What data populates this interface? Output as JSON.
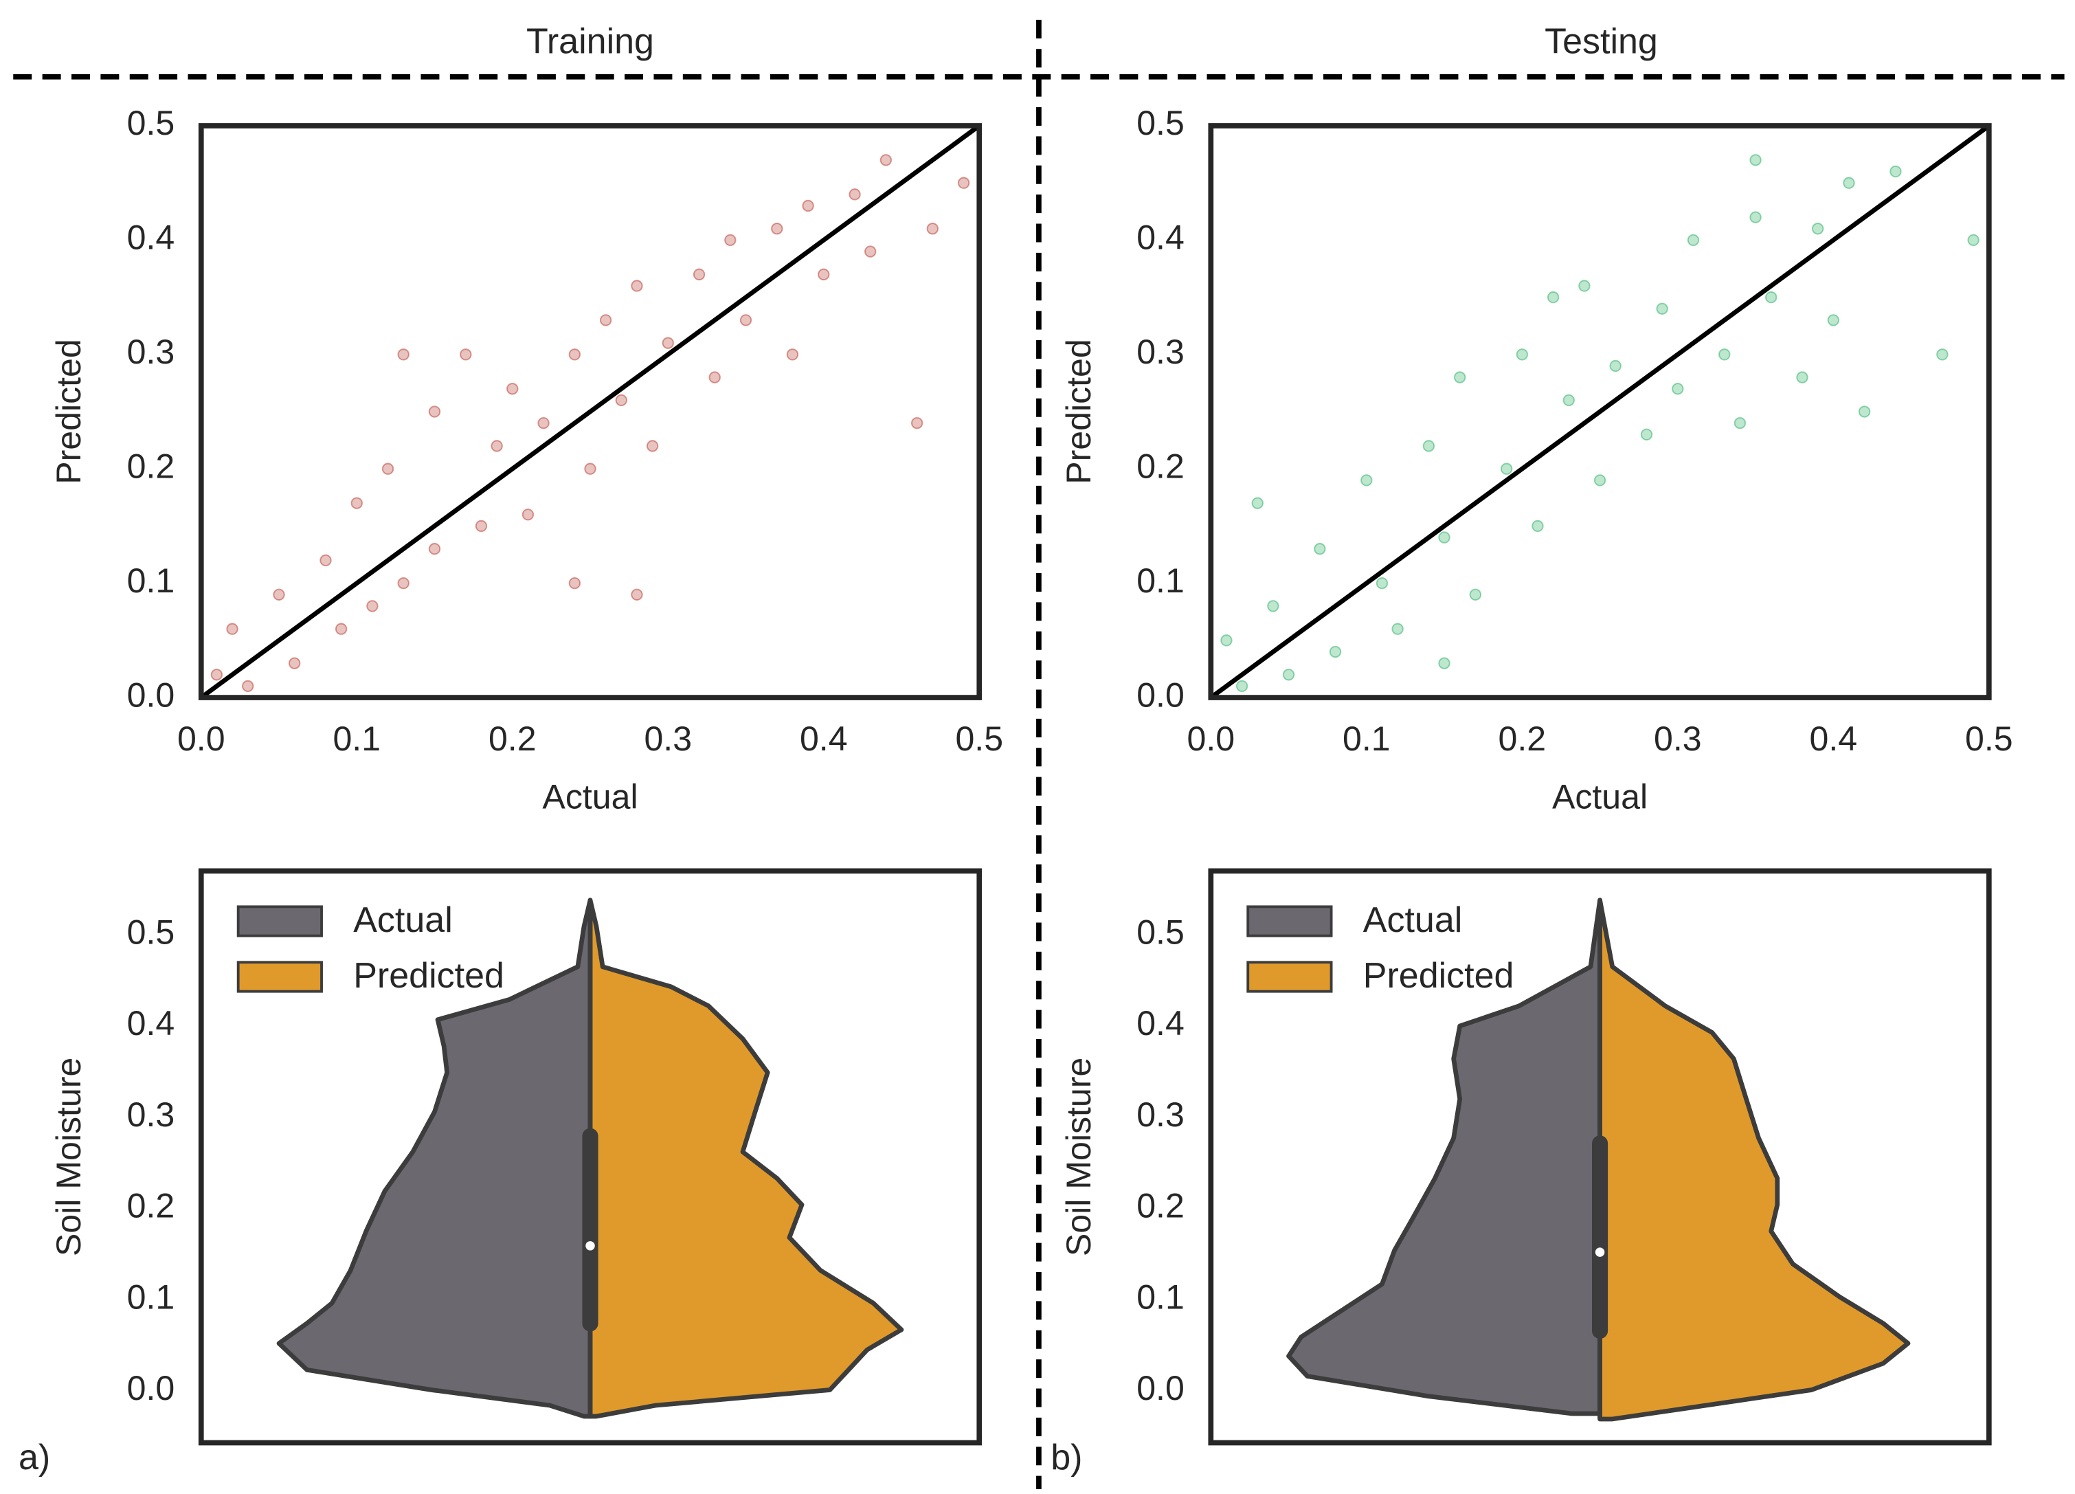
{
  "headers": [
    "Training",
    "Testing"
  ],
  "panel_labels": [
    "a)",
    "b)"
  ],
  "chart_data": [
    {
      "type": "scatter",
      "xlabel": "Actual",
      "ylabel": "Predicted",
      "color": "#b5382b",
      "xlim": [
        0,
        0.5
      ],
      "ylim": [
        0,
        0.5
      ],
      "xticks": [
        {
          "value": 0,
          "label": "0.0"
        },
        0.1,
        0.2,
        0.3,
        0.4,
        0.5
      ],
      "yticks": [
        {
          "value": 0,
          "label": "0.0"
        },
        0.1,
        0.2,
        0.3,
        0.4,
        0.5
      ],
      "x": [
        0.01,
        0.02,
        0.03,
        0.05,
        0.06,
        0.08,
        0.09,
        0.1,
        0.11,
        0.12,
        0.13,
        0.15,
        0.15,
        0.17,
        0.18,
        0.19,
        0.2,
        0.21,
        0.22,
        0.24,
        0.25,
        0.26,
        0.27,
        0.28,
        0.29,
        0.3,
        0.32,
        0.33,
        0.34,
        0.35,
        0.37,
        0.38,
        0.39,
        0.4,
        0.42,
        0.43,
        0.44,
        0.47,
        0.49,
        0.24,
        0.13,
        0.28,
        0.46
      ],
      "y": [
        0.02,
        0.06,
        0.01,
        0.09,
        0.03,
        0.12,
        0.06,
        0.17,
        0.08,
        0.2,
        0.1,
        0.25,
        0.13,
        0.3,
        0.15,
        0.22,
        0.27,
        0.16,
        0.24,
        0.3,
        0.2,
        0.33,
        0.26,
        0.36,
        0.22,
        0.31,
        0.37,
        0.28,
        0.4,
        0.33,
        0.41,
        0.3,
        0.43,
        0.37,
        0.44,
        0.39,
        0.47,
        0.41,
        0.45,
        0.1,
        0.3,
        0.09,
        0.24
      ],
      "reference_line": {
        "x": [
          0,
          0.5
        ],
        "y": [
          0,
          0.5
        ],
        "color": "#000000"
      }
    },
    {
      "type": "scatter",
      "xlabel": "Actual",
      "ylabel": "Predicted",
      "color": "#27ae60",
      "xlim": [
        0,
        0.5
      ],
      "ylim": [
        0,
        0.5
      ],
      "xticks": [
        {
          "value": 0,
          "label": "0.0"
        },
        0.1,
        0.2,
        0.3,
        0.4,
        0.5
      ],
      "yticks": [
        {
          "value": 0,
          "label": "0.0"
        },
        0.1,
        0.2,
        0.3,
        0.4,
        0.5
      ],
      "x": [
        0.01,
        0.02,
        0.03,
        0.04,
        0.05,
        0.07,
        0.08,
        0.1,
        0.11,
        0.12,
        0.14,
        0.15,
        0.16,
        0.17,
        0.19,
        0.2,
        0.21,
        0.23,
        0.24,
        0.25,
        0.26,
        0.28,
        0.29,
        0.3,
        0.31,
        0.33,
        0.34,
        0.35,
        0.36,
        0.38,
        0.39,
        0.4,
        0.41,
        0.42,
        0.44,
        0.47,
        0.49,
        0.35,
        0.22,
        0.15
      ],
      "y": [
        0.05,
        0.01,
        0.17,
        0.08,
        0.02,
        0.13,
        0.04,
        0.19,
        0.1,
        0.06,
        0.22,
        0.14,
        0.28,
        0.09,
        0.2,
        0.3,
        0.15,
        0.26,
        0.36,
        0.19,
        0.29,
        0.23,
        0.34,
        0.27,
        0.4,
        0.3,
        0.24,
        0.42,
        0.35,
        0.28,
        0.41,
        0.33,
        0.45,
        0.25,
        0.46,
        0.3,
        0.4,
        0.47,
        0.35,
        0.03
      ],
      "reference_line": {
        "x": [
          0,
          0.5
        ],
        "y": [
          0,
          0.5
        ],
        "color": "#000000"
      }
    },
    {
      "type": "violin",
      "ylabel": "Soil Moisture",
      "ylim": [
        -0.057,
        0.57
      ],
      "yticks": [
        {
          "value": 0,
          "label": "0.0"
        },
        0.1,
        0.2,
        0.3,
        0.4,
        0.5
      ],
      "legend": "upper left",
      "series": [
        {
          "name": "Actual",
          "color": "#6b6870",
          "y": [
            0.538,
            0.509,
            0.465,
            0.429,
            0.407,
            0.378,
            0.349,
            0.306,
            0.262,
            0.219,
            0.175,
            0.132,
            0.096,
            0.074,
            0.052,
            0.023,
            0.001,
            -0.016,
            -0.028
          ],
          "density": [
            0,
            0.02,
            0.04,
            0.26,
            0.49,
            0.47,
            0.46,
            0.5,
            0.57,
            0.66,
            0.72,
            0.77,
            0.83,
            0.91,
            1.0,
            0.91,
            0.51,
            0.13,
            0.02
          ]
        },
        {
          "name": "Predicted",
          "color": "#e09a2b",
          "y": [
            0.538,
            0.509,
            0.465,
            0.443,
            0.422,
            0.386,
            0.349,
            0.306,
            0.262,
            0.233,
            0.204,
            0.168,
            0.132,
            0.096,
            0.067,
            0.045,
            0.023,
            0.001,
            -0.016,
            -0.028
          ],
          "density": [
            0,
            0.02,
            0.04,
            0.26,
            0.38,
            0.49,
            0.57,
            0.53,
            0.49,
            0.6,
            0.68,
            0.64,
            0.74,
            0.91,
            1.0,
            0.89,
            0.83,
            0.77,
            0.21,
            0.02
          ]
        }
      ],
      "box": {
        "q1": 0.065,
        "q3": 0.288,
        "median": 0.159,
        "whisker": [
          -0.028,
          0.538
        ]
      }
    },
    {
      "type": "violin",
      "ylabel": "Soil Moisture",
      "ylim": [
        -0.057,
        0.57
      ],
      "yticks": [
        {
          "value": 0,
          "label": "0.0"
        },
        0.1,
        0.2,
        0.3,
        0.4,
        0.5
      ],
      "legend": "upper left",
      "series": [
        {
          "name": "Actual",
          "color": "#6b6870",
          "y": [
            0.538,
            0.465,
            0.422,
            0.4,
            0.364,
            0.32,
            0.277,
            0.233,
            0.19,
            0.154,
            0.117,
            0.088,
            0.059,
            0.038,
            0.016,
            -0.006,
            -0.025
          ],
          "density": [
            0,
            0.03,
            0.26,
            0.45,
            0.47,
            0.45,
            0.47,
            0.53,
            0.6,
            0.66,
            0.7,
            0.83,
            0.96,
            1.0,
            0.94,
            0.55,
            0.09
          ]
        },
        {
          "name": "Predicted",
          "color": "#e09a2b",
          "y": [
            0.538,
            0.465,
            0.422,
            0.393,
            0.364,
            0.32,
            0.277,
            0.233,
            0.204,
            0.175,
            0.139,
            0.103,
            0.074,
            0.052,
            0.03,
            0.001,
            -0.02,
            -0.031
          ],
          "density": [
            0,
            0.04,
            0.21,
            0.36,
            0.43,
            0.47,
            0.51,
            0.57,
            0.57,
            0.55,
            0.62,
            0.77,
            0.91,
            0.99,
            0.91,
            0.68,
            0.26,
            0.04
          ]
        }
      ],
      "box": {
        "q1": 0.057,
        "q3": 0.28,
        "median": 0.152,
        "whisker": [
          -0.031,
          0.538
        ]
      }
    }
  ]
}
